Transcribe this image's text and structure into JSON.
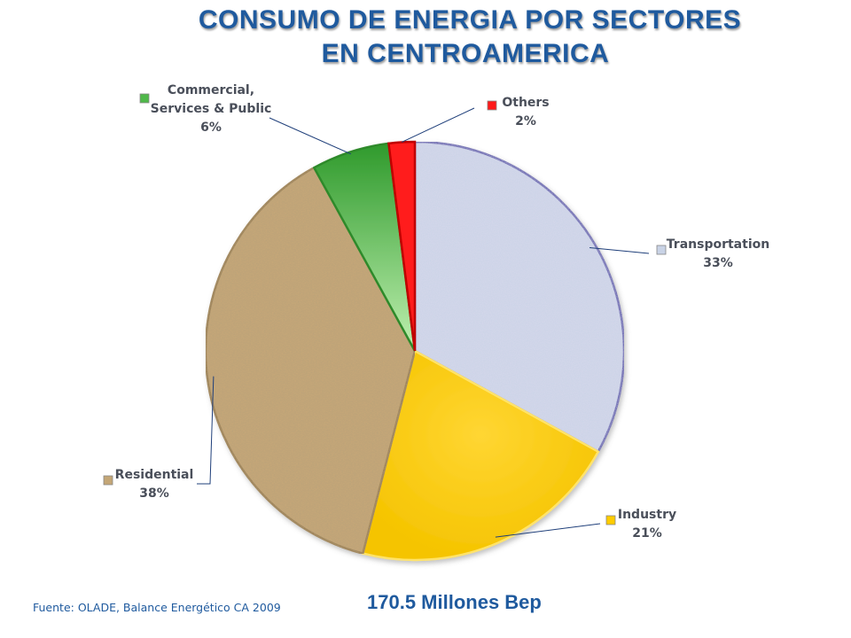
{
  "page": {
    "title_line1": "CONSUMO DE ENERGIA POR SECTORES",
    "title_line2": "EN CENTROAMERICA",
    "source": "Fuente: OLADE, Balance Energético CA 2009",
    "total": "170.5 Millones Bep"
  },
  "chart_data": {
    "type": "pie",
    "title": "CONSUMO DE ENERGIA POR SECTORES EN CENTROAMERICA",
    "slices": [
      {
        "label": "Transportation",
        "label_lines": [
          "Transportation"
        ],
        "value": 33,
        "value_label": "33%",
        "color": "#c9d3e6",
        "edge": "#4b4fa8"
      },
      {
        "label": "Industry",
        "label_lines": [
          "Industry"
        ],
        "value": 21,
        "value_label": "21%",
        "color": "#ffcc00",
        "edge": "#f2d000"
      },
      {
        "label": "Residential",
        "label_lines": [
          "Residential"
        ],
        "value": 38,
        "value_label": "38%",
        "color": "#c4a676",
        "edge": "#9a7c4e"
      },
      {
        "label": "Commercial, Services & Public",
        "label_lines": [
          "Commercial,",
          "Services & Public"
        ],
        "value": 6,
        "value_label": "6%",
        "color": "#4fb84a",
        "edge": "#2f8a2c"
      },
      {
        "label": "Others",
        "label_lines": [
          "Others"
        ],
        "value": 2,
        "value_label": "2%",
        "color": "#ff1a1a",
        "edge": "#c00000"
      }
    ],
    "start_angle_deg": 0,
    "direction": "clockwise",
    "labels_position": "outside with leader lines"
  }
}
